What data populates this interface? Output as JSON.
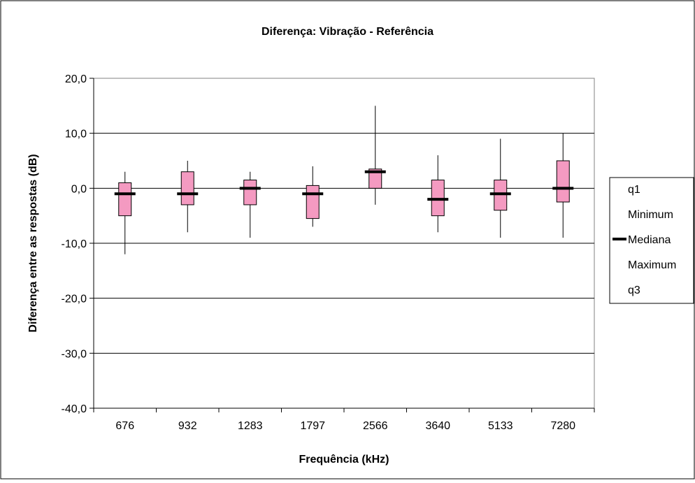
{
  "chart_data": {
    "type": "box",
    "title": "Diferença: Vibração - Referência",
    "xlabel": "Frequência (kHz)",
    "ylabel": "Diferença entre as respostas (dB)",
    "ylim": [
      -40,
      20
    ],
    "ytick_step": 10,
    "ytick_labels": [
      "20,0",
      "10,0",
      "0,0",
      "-10,0",
      "-20,0",
      "-30,0",
      "-40,0"
    ],
    "grid": "horizontal",
    "legend_position": "right",
    "categories": [
      "676",
      "932",
      "1283",
      "1797",
      "2566",
      "3640",
      "5133",
      "7280"
    ],
    "series": [
      {
        "name": "q1",
        "values": [
          -5,
          -3,
          -3,
          -5.5,
          0,
          -5,
          -4,
          -2.5
        ]
      },
      {
        "name": "Minimum",
        "values": [
          -12,
          -8,
          -9,
          -7,
          -3,
          -8,
          -9,
          -9
        ]
      },
      {
        "name": "Mediana",
        "values": [
          -1,
          -1,
          0,
          -1,
          3,
          -2,
          -1,
          0
        ]
      },
      {
        "name": "Maximum",
        "values": [
          3,
          5,
          3,
          4,
          15,
          6,
          9,
          10
        ]
      },
      {
        "name": "q3",
        "values": [
          1,
          3,
          1.5,
          0.5,
          3.5,
          1.5,
          1.5,
          5
        ]
      }
    ],
    "colors": {
      "box_fill": "#F49AC1",
      "median": "#000000",
      "whisker": "#000000",
      "grid": "#000000"
    }
  }
}
